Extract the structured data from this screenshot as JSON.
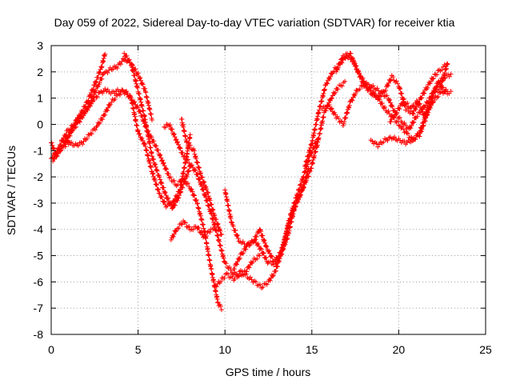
{
  "chart_data": {
    "type": "scatter",
    "title": "Day 059 of 2022, Sidereal Day-to-day VTEC variation (SDTVAR) for receiver ktia",
    "xlabel": "GPS time / hours",
    "ylabel": "SDTVAR / TECUs",
    "xlim": [
      0,
      25
    ],
    "ylim": [
      -8,
      3
    ],
    "xticks": [
      0,
      5,
      10,
      15,
      20,
      25
    ],
    "yticks": [
      -8,
      -7,
      -6,
      -5,
      -4,
      -3,
      -2,
      -1,
      0,
      1,
      2,
      3
    ],
    "grid": true,
    "marker": "+",
    "color": "#ff0000",
    "series": [
      {
        "x": [
          0.0,
          0.4,
          0.8,
          1.2,
          1.6,
          2.0,
          2.4,
          2.8,
          3.1,
          3.5,
          3.9,
          4.3,
          4.7,
          5.1,
          5.5,
          6.0,
          6.4,
          6.8,
          7.2,
          7.6,
          8.0,
          8.4,
          8.8,
          9.2,
          9.6,
          9.8
        ],
        "y": [
          -1.3,
          -1.0,
          -0.8,
          -0.2,
          0.3,
          0.5,
          0.9,
          1.2,
          1.3,
          1.2,
          1.3,
          1.2,
          0.9,
          0.5,
          -0.2,
          -0.8,
          -1.4,
          -2.0,
          -2.3,
          -2.1,
          -2.4,
          -3.0,
          -4.0,
          -5.5,
          -6.8,
          -7.0
        ]
      },
      {
        "x": [
          0.0,
          0.3,
          0.7,
          1.1,
          1.5,
          1.9,
          2.3,
          2.7,
          3.0,
          3.4,
          3.8,
          4.2,
          4.6,
          5.0,
          5.4,
          5.8
        ],
        "y": [
          -0.7,
          -1.2,
          -0.8,
          -0.3,
          0.0,
          0.4,
          0.9,
          1.5,
          1.9,
          2.1,
          2.2,
          2.5,
          2.3,
          1.9,
          1.3,
          0.2
        ]
      },
      {
        "x": [
          0.1,
          0.5,
          0.9,
          1.3,
          1.7,
          2.1,
          2.5,
          2.9,
          3.1
        ],
        "y": [
          -1.4,
          -0.8,
          -0.3,
          0.0,
          0.4,
          0.9,
          1.5,
          2.2,
          2.7
        ]
      },
      {
        "x": [
          0.6,
          1.0,
          1.4,
          1.8,
          2.2,
          2.6,
          3.0,
          3.4,
          3.8,
          4.2,
          4.6,
          5.0,
          5.4,
          5.8,
          6.2,
          6.6,
          7.0,
          7.4,
          7.8,
          8.0
        ],
        "y": [
          -0.6,
          -0.7,
          -0.8,
          -0.7,
          -0.4,
          -0.1,
          0.3,
          0.8,
          1.1,
          1.3,
          1.0,
          -0.3,
          -0.8,
          -1.8,
          -2.6,
          -3.1,
          -3.0,
          -2.5,
          -1.2,
          -0.4
        ]
      },
      {
        "x": [
          4.2,
          4.6,
          5.0,
          5.4,
          5.8,
          6.2,
          6.6,
          7.0,
          7.3,
          7.6,
          8.0
        ],
        "y": [
          2.7,
          2.3,
          1.3,
          0.2,
          -1.2,
          -2.0,
          -2.7,
          -3.2,
          -2.8,
          -2.3,
          -1.6
        ]
      },
      {
        "x": [
          6.5,
          6.8,
          7.2,
          7.6,
          8.0,
          8.4,
          8.8,
          9.2,
          9.6,
          10.0,
          10.4,
          10.8,
          11.2,
          11.6,
          12.0
        ],
        "y": [
          -0.1,
          0.0,
          -0.6,
          -1.2,
          -1.5,
          -1.9,
          -2.6,
          -3.4,
          -4.3,
          -5.3,
          -5.6,
          -5.8,
          -5.6,
          -5.2,
          -5.0
        ]
      },
      {
        "x": [
          6.9,
          7.2,
          7.6,
          8.0,
          8.4,
          8.8,
          9.2,
          9.6
        ],
        "y": [
          -4.4,
          -4.0,
          -3.7,
          -4.0,
          -3.9,
          -4.3,
          -4.0,
          -4.0
        ]
      },
      {
        "x": [
          7.5,
          7.8,
          8.2,
          8.6,
          9.0,
          9.4,
          9.8
        ],
        "y": [
          0.2,
          -0.7,
          -1.0,
          -1.9,
          -2.6,
          -3.5,
          -4.2
        ]
      },
      {
        "x": [
          9.4,
          9.7,
          10.1,
          10.5,
          10.9,
          11.3,
          11.7,
          12.1,
          12.5,
          12.9,
          13.3,
          13.7,
          14.1,
          14.5,
          14.9,
          15.3
        ],
        "y": [
          -6.2,
          -6.0,
          -5.7,
          -5.9,
          -5.6,
          -5.8,
          -6.0,
          -6.2,
          -6.0,
          -5.6,
          -4.8,
          -3.6,
          -2.8,
          -2.0,
          -1.2,
          -0.6
        ]
      },
      {
        "x": [
          10.0,
          10.4,
          10.8,
          11.2,
          11.6,
          12.0,
          12.4,
          12.8,
          13.2,
          13.6,
          14.0,
          14.4,
          14.8
        ],
        "y": [
          -2.5,
          -3.8,
          -4.4,
          -4.6,
          -4.5,
          -4.0,
          -4.7,
          -5.2,
          -5.0,
          -4.3,
          -3.2,
          -2.6,
          -1.7
        ]
      },
      {
        "x": [
          10.5,
          10.9,
          11.3,
          11.7,
          12.1,
          12.5,
          12.9,
          13.3,
          13.7,
          14.1,
          14.5,
          14.9,
          15.3,
          15.7,
          16.1,
          16.5,
          16.9
        ],
        "y": [
          -5.5,
          -5.0,
          -4.6,
          -4.4,
          -4.8,
          -5.3,
          -5.3,
          -4.7,
          -3.7,
          -3.0,
          -2.4,
          -1.8,
          -0.8,
          0.4,
          1.0,
          1.4,
          1.6
        ]
      },
      {
        "x": [
          14.6,
          15.0,
          15.4,
          15.8,
          16.2,
          16.6,
          17.0,
          17.4,
          17.8,
          18.2,
          18.6,
          19.0,
          19.4,
          19.8,
          20.2,
          20.6,
          21.0,
          21.4,
          21.8,
          22.2,
          22.6,
          23.0
        ],
        "y": [
          -1.6,
          -0.7,
          0.5,
          1.5,
          2.0,
          2.3,
          2.6,
          2.4,
          1.8,
          1.5,
          1.4,
          1.2,
          1.0,
          0.4,
          0.1,
          -0.2,
          0.3,
          0.6,
          1.0,
          1.5,
          1.8,
          1.9
        ]
      },
      {
        "x": [
          15.6,
          16.0,
          16.4,
          16.8,
          17.2,
          17.6,
          18.0,
          18.4,
          18.8,
          19.2,
          19.6,
          20.0,
          20.4,
          20.8,
          21.2,
          21.6,
          22.0,
          22.4,
          22.8
        ],
        "y": [
          0.6,
          0.7,
          0.3,
          0.0,
          0.8,
          1.3,
          1.5,
          1.2,
          1.0,
          0.6,
          0.3,
          0.0,
          -0.3,
          -0.6,
          -0.4,
          0.3,
          1.2,
          1.4,
          2.3
        ]
      },
      {
        "x": [
          16.4,
          16.8,
          17.2,
          17.6,
          18.0,
          18.4,
          18.8,
          19.2,
          19.6,
          20.0,
          20.4,
          20.8,
          21.2,
          21.6,
          22.0,
          22.4,
          22.8
        ],
        "y": [
          2.0,
          2.6,
          2.7,
          2.1,
          1.5,
          1.3,
          1.0,
          1.3,
          1.8,
          1.5,
          0.6,
          0.4,
          0.9,
          1.4,
          1.8,
          2.1,
          2.3
        ]
      },
      {
        "x": [
          18.4,
          18.8,
          19.2,
          19.6,
          20.0,
          20.4,
          20.8,
          21.2,
          21.6,
          22.0,
          22.4,
          22.8
        ],
        "y": [
          -0.6,
          -0.8,
          -0.6,
          -0.5,
          -0.6,
          -0.7,
          -0.6,
          -0.3,
          0.4,
          0.9,
          1.2,
          1.3
        ]
      },
      {
        "x": [
          19.5,
          19.9,
          20.3,
          20.7,
          21.1,
          21.5,
          21.9,
          22.3,
          22.7,
          23.0
        ],
        "y": [
          0.1,
          0.5,
          0.9,
          0.6,
          0.9,
          0.3,
          1.0,
          1.6,
          1.2,
          1.2
        ]
      }
    ]
  }
}
